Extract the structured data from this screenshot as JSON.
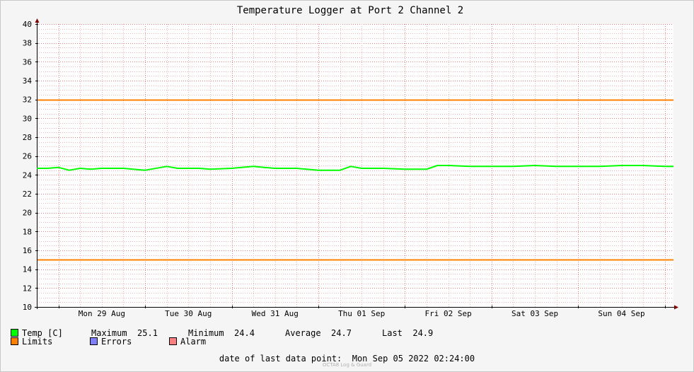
{
  "chart_data": {
    "type": "line",
    "title": "Temperature Logger at Port 2 Channel 2",
    "ylim": [
      10,
      40
    ],
    "yticks": [
      10,
      12,
      14,
      16,
      18,
      20,
      22,
      24,
      26,
      28,
      30,
      32,
      34,
      36,
      38,
      40
    ],
    "x_start": "2022-08-28 18:00",
    "x_end": "2022-09-05 02:24",
    "day_labels": [
      "Mon 29 Aug",
      "Tue 30 Aug",
      "Wed 31 Aug",
      "Thu 01 Sep",
      "Fri 02 Sep",
      "Sat 03 Sep",
      "Sun 04 Sep"
    ],
    "limits": [
      32,
      15
    ],
    "series": [
      {
        "name": "Temp [C]",
        "color": "#00ff00",
        "x": [
          "2022-08-28 18:00",
          "2022-08-28 21:00",
          "2022-08-29 00:00",
          "2022-08-29 03:00",
          "2022-08-29 06:00",
          "2022-08-29 09:00",
          "2022-08-29 12:00",
          "2022-08-29 18:00",
          "2022-08-30 00:00",
          "2022-08-30 06:00",
          "2022-08-30 09:00",
          "2022-08-30 12:00",
          "2022-08-30 15:00",
          "2022-08-30 18:00",
          "2022-08-31 00:00",
          "2022-08-31 06:00",
          "2022-08-31 09:00",
          "2022-08-31 12:00",
          "2022-08-31 15:00",
          "2022-08-31 18:00",
          "2022-09-01 00:00",
          "2022-09-01 06:00",
          "2022-09-01 09:00",
          "2022-09-01 12:00",
          "2022-09-01 15:00",
          "2022-09-01 18:00",
          "2022-09-02 00:00",
          "2022-09-02 06:00",
          "2022-09-02 09:00",
          "2022-09-02 12:00",
          "2022-09-02 18:00",
          "2022-09-03 00:00",
          "2022-09-03 06:00",
          "2022-09-03 12:00",
          "2022-09-03 18:00",
          "2022-09-04 00:00",
          "2022-09-04 06:00",
          "2022-09-04 12:00",
          "2022-09-04 18:00",
          "2022-09-05 00:00",
          "2022-09-05 02:24"
        ],
        "y": [
          24.7,
          24.7,
          24.8,
          24.5,
          24.7,
          24.6,
          24.7,
          24.7,
          24.5,
          24.9,
          24.7,
          24.7,
          24.7,
          24.6,
          24.7,
          24.9,
          24.8,
          24.7,
          24.7,
          24.7,
          24.5,
          24.5,
          24.9,
          24.7,
          24.7,
          24.7,
          24.6,
          24.6,
          25.0,
          25.0,
          24.9,
          24.9,
          24.9,
          25.0,
          24.9,
          24.9,
          24.9,
          25.0,
          25.0,
          24.9,
          24.9
        ]
      }
    ],
    "legend": {
      "temp_label": "Temp [C]",
      "maximum_label": "Maximum",
      "maximum_value": "25.1",
      "minimum_label": "Minimum",
      "minimum_value": "24.4",
      "average_label": "Average",
      "average_value": "24.7",
      "last_label": "Last",
      "last_value": "24.9",
      "limits_label": "Limits",
      "errors_label": "Errors",
      "alarm_label": "Alarm"
    },
    "colors": {
      "temp": "#00ff00",
      "limits": "#ff8000",
      "errors": "#8080ff",
      "alarm": "#ff8080",
      "minor_grid": "#e6b8b8",
      "major_grid": "#e08080"
    }
  },
  "footer": {
    "label": "date of last data point:",
    "value": "Mon Sep 05 2022 02:24:00"
  },
  "watermark": "OCTA8 Log & Guard"
}
